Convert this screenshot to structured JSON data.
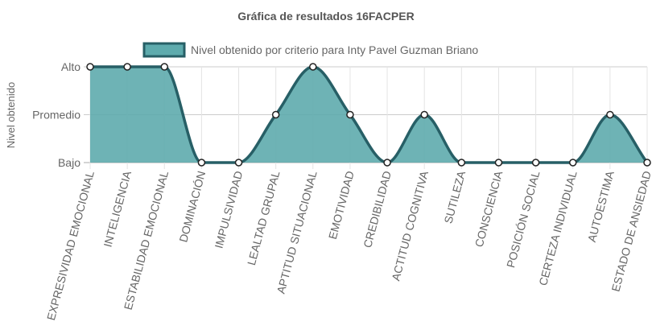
{
  "chart_data": {
    "type": "line",
    "title": "Gráfica de resultados 16FACPER",
    "y_label": "Nivel obtenido",
    "categories": [
      "EXPRESIVIDAD EMOCIONAL",
      "INTELIGENCIA",
      "ESTABILIDAD EMOCIONAL",
      "DOMINACIÓN",
      "IMPULSIVIDAD",
      "LEALTAD GRUPAL",
      "APTITUD SITUACIONAL",
      "EMOTIVIDAD",
      "CREDIBILIDAD",
      "ACTITUD COGNITIVA",
      "SUTILEZA",
      "CONSCIENCIA",
      "POSICIÓN SOCIAL",
      "CERTEZA INDIVIDUAL",
      "AUTOESTIMA",
      "ESTADO DE ANSIEDAD"
    ],
    "series": [
      {
        "name": "Nivel obtenido por criterio para Inty Pavel Guzman Briano",
        "color": "#275f66",
        "fill": "#5eabad",
        "values": [
          2,
          2,
          2,
          0,
          0,
          1,
          2,
          1,
          0,
          1,
          0,
          0,
          0,
          0,
          1,
          0
        ]
      }
    ],
    "ylim": [
      0,
      2
    ],
    "yticks": [
      {
        "value": 0,
        "label": "Bajo"
      },
      {
        "value": 1,
        "label": "Promedio"
      },
      {
        "value": 2,
        "label": "Alto"
      }
    ],
    "grid": true,
    "legend": "top"
  }
}
